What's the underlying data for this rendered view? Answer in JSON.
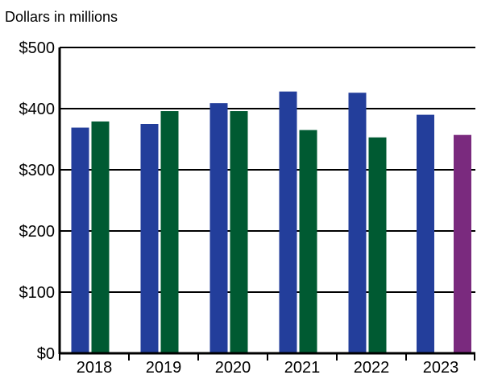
{
  "chart_data": {
    "type": "bar",
    "title": "Dollars in millions",
    "xlabel": "",
    "ylabel": "",
    "categories": [
      "2018",
      "2019",
      "2020",
      "2021",
      "2022",
      "2023"
    ],
    "series": [
      {
        "values": [
          369,
          375,
          409,
          428,
          426,
          390
        ]
      },
      {
        "values": [
          379,
          396,
          396,
          365,
          353,
          357
        ]
      }
    ],
    "ylim": [
      0,
      500
    ],
    "yticks": [
      0,
      100,
      200,
      300,
      400,
      500
    ],
    "ytick_labels": [
      "$0",
      "$100",
      "$200",
      "$300",
      "$400",
      "$500"
    ],
    "grid": true,
    "legend": "none",
    "colors": {
      "first": "#233e9b",
      "second": "#005a32",
      "second_2023": "#7a2a7e",
      "axis": "#000000"
    }
  }
}
